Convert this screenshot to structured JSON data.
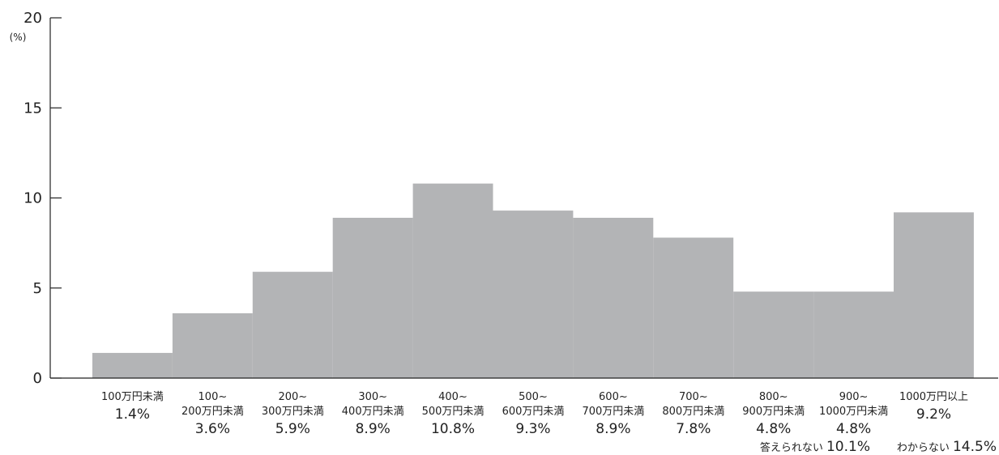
{
  "chart_data": {
    "type": "bar",
    "ylabel": "(%)",
    "ylim": [
      0,
      20
    ],
    "yticks": [
      0,
      5,
      10,
      15,
      20
    ],
    "grid": false,
    "bar_color": "#b3b4b6",
    "categories": [
      [
        "100万円未満"
      ],
      [
        "100~",
        "200万円未満"
      ],
      [
        "200~",
        "300万円未満"
      ],
      [
        "300~",
        "400万円未満"
      ],
      [
        "400~",
        "500万円未満"
      ],
      [
        "500~",
        "600万円未満"
      ],
      [
        "600~",
        "700万円未満"
      ],
      [
        "700~",
        "800万円未満"
      ],
      [
        "800~",
        "900万円未満"
      ],
      [
        "900~",
        "1000万円未満"
      ],
      [
        "1000万円以上"
      ]
    ],
    "values": [
      1.4,
      3.6,
      5.9,
      8.9,
      10.8,
      9.3,
      8.9,
      7.8,
      4.8,
      4.8,
      9.2
    ],
    "value_labels": [
      "1.4%",
      "3.6%",
      "5.9%",
      "8.9%",
      "10.8%",
      "9.3%",
      "8.9%",
      "7.8%",
      "4.8%",
      "4.8%",
      "9.2%"
    ],
    "notes": [
      {
        "label": "答えられない",
        "value": "10.1%"
      },
      {
        "label": "わからない",
        "value": "14.5%"
      }
    ]
  }
}
